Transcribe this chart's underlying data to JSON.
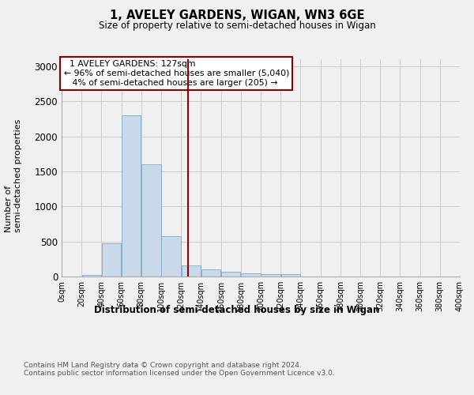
{
  "title": "1, AVELEY GARDENS, WIGAN, WN3 6GE",
  "subtitle": "Size of property relative to semi-detached houses in Wigan",
  "xlabel": "Distribution of semi-detached houses by size in Wigan",
  "ylabel": "Number of semi-detached properties",
  "footnote": "Contains HM Land Registry data © Crown copyright and database right 2024.\nContains public sector information licensed under the Open Government Licence v3.0.",
  "bar_color": "#c9d9ea",
  "bar_edge_color": "#7aaac8",
  "property_line_color": "#8b0000",
  "annotation_box_color": "#8b0000",
  "property_sqm": 127,
  "property_label": "1 AVELEY GARDENS: 127sqm",
  "pct_smaller": 96,
  "n_smaller": 5040,
  "pct_larger": 4,
  "n_larger": 205,
  "bin_edges": [
    0,
    20,
    40,
    60,
    80,
    100,
    120,
    140,
    160,
    180,
    200,
    220,
    240,
    260,
    280,
    300,
    320,
    340,
    360,
    380,
    400
  ],
  "bar_heights": [
    0,
    20,
    470,
    2300,
    1600,
    570,
    160,
    105,
    70,
    50,
    30,
    30,
    0,
    0,
    0,
    0,
    0,
    0,
    0,
    0
  ],
  "ylim": [
    0,
    3100
  ],
  "yticks": [
    0,
    500,
    1000,
    1500,
    2000,
    2500,
    3000
  ],
  "background_color": "#f0f0f0",
  "grid_color": "#cccccc"
}
